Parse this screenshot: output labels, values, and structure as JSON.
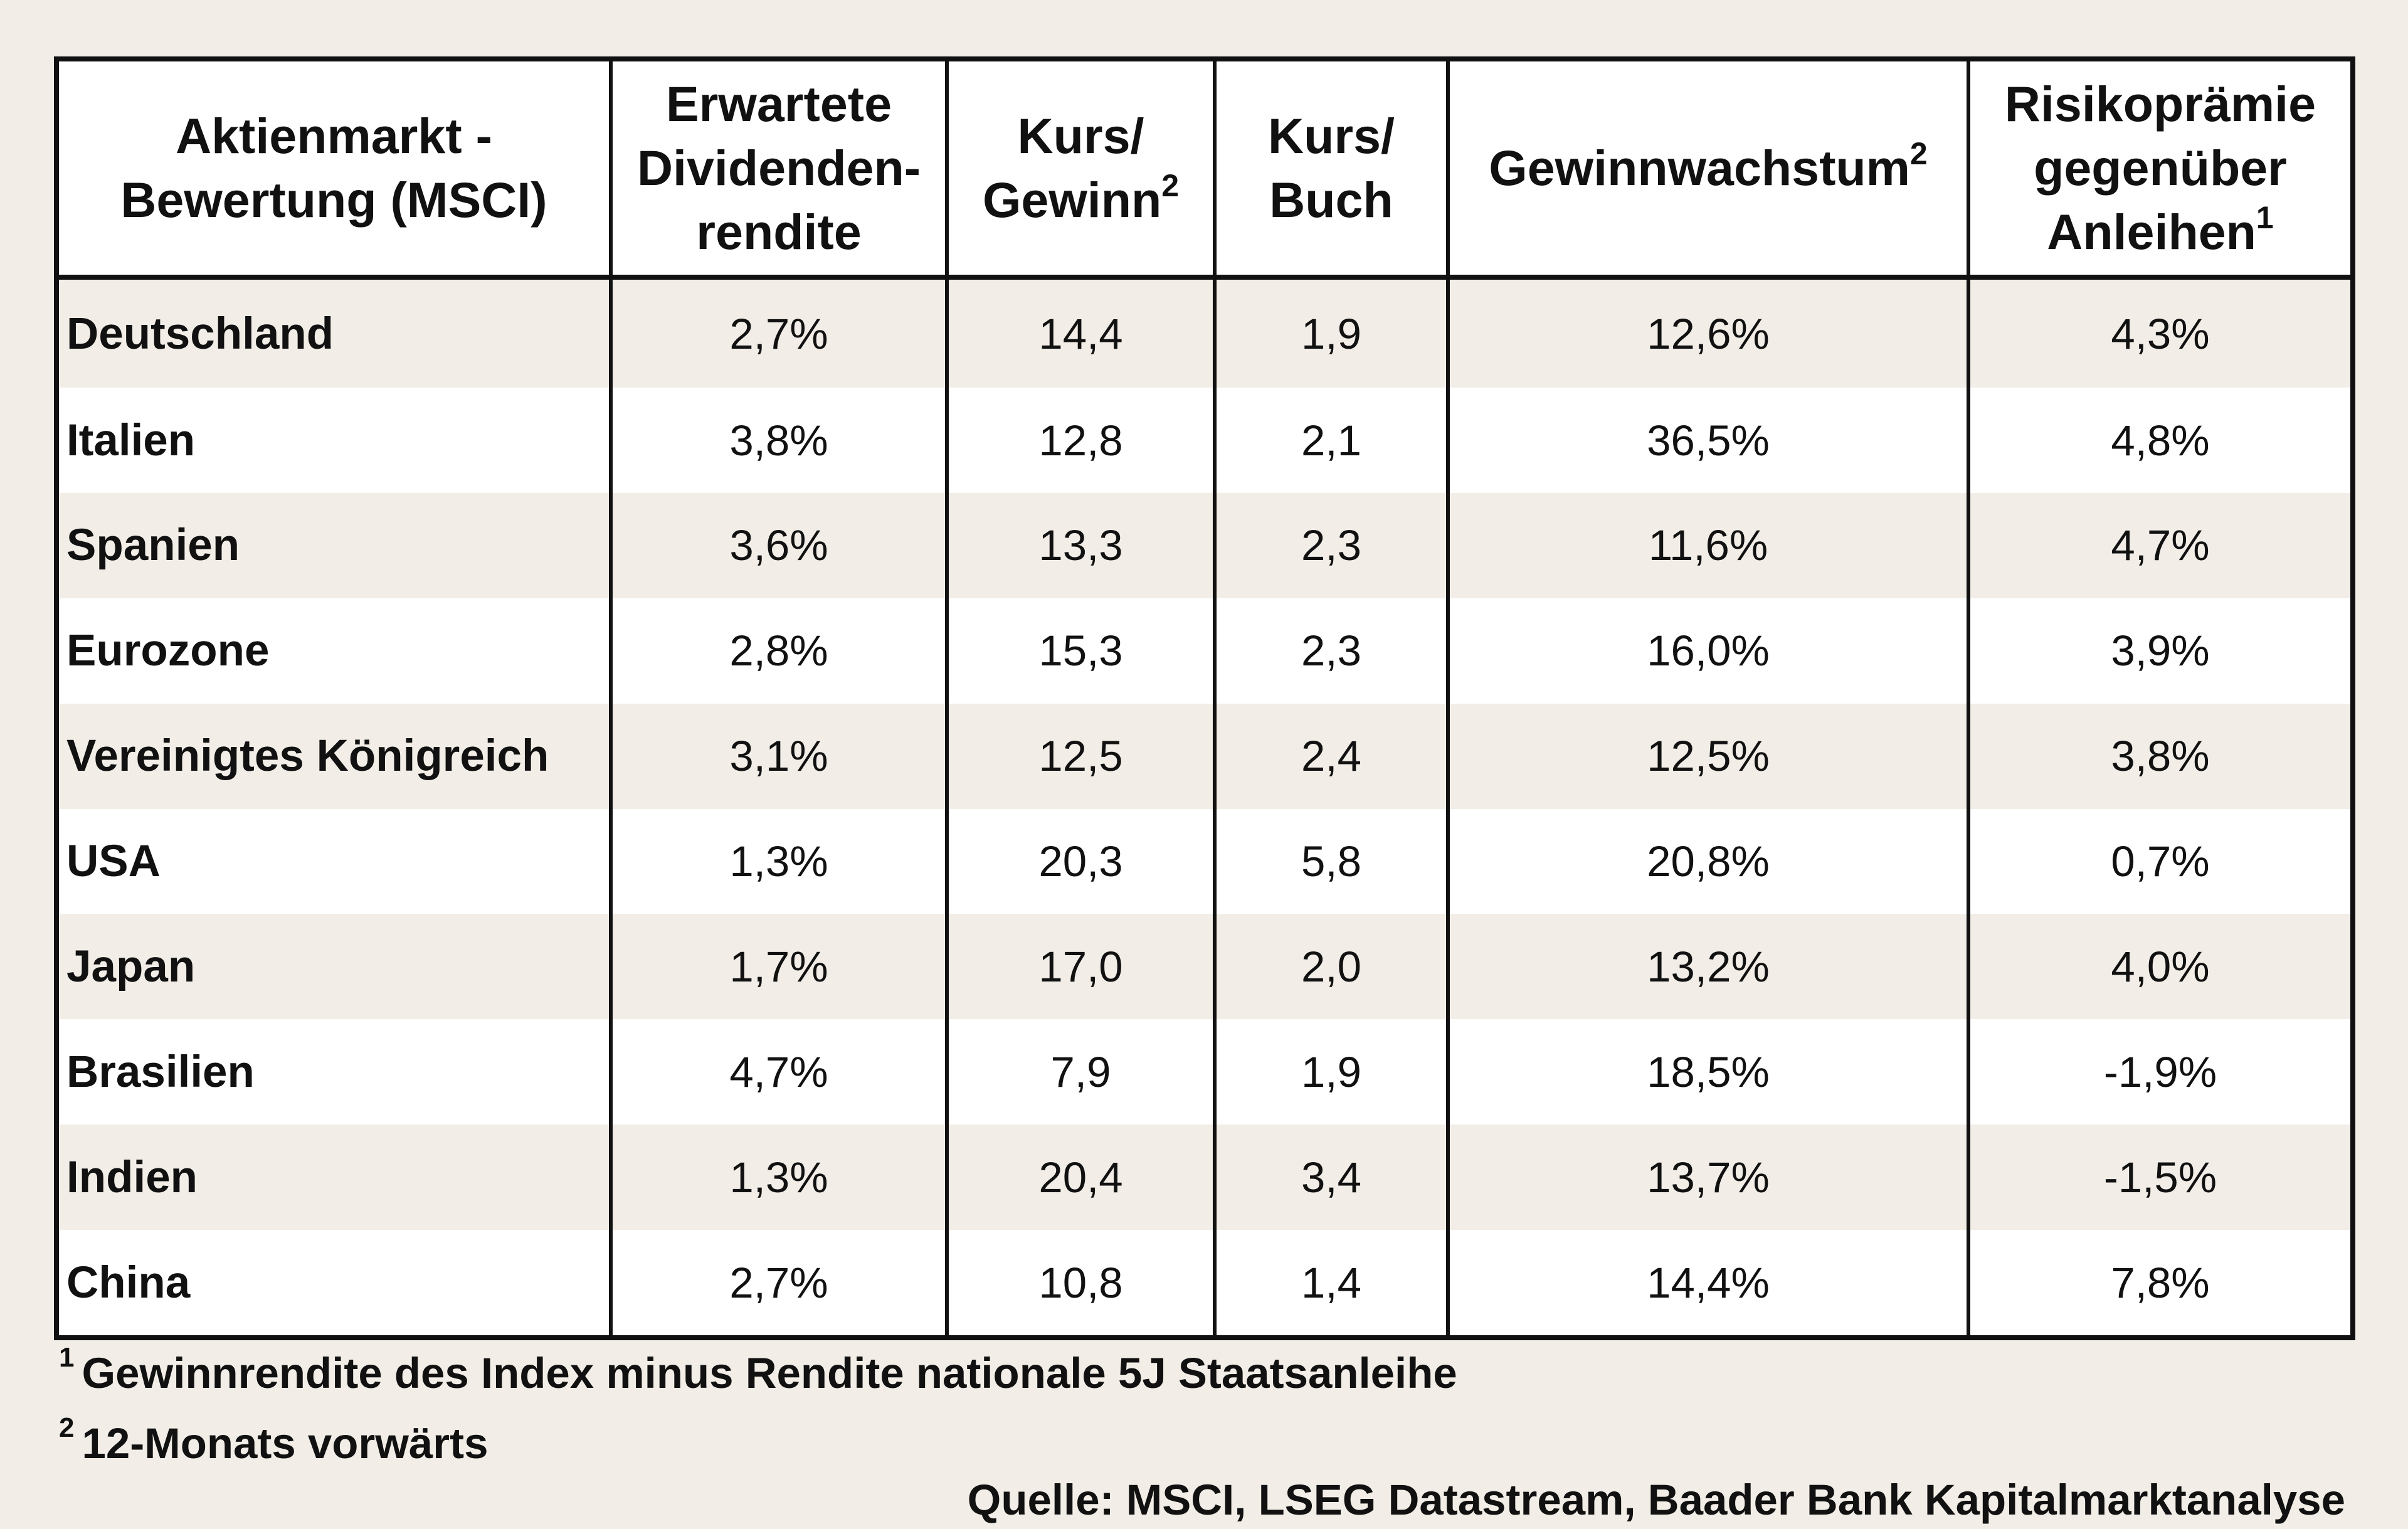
{
  "table": {
    "headers": [
      {
        "line1": "Aktienmarkt -",
        "line2": "Bewertung (MSCI)",
        "line3": "",
        "sup": ""
      },
      {
        "line1": "Erwartete",
        "line2": "Dividenden-",
        "line3": "rendite",
        "sup": ""
      },
      {
        "line1": "Kurs/",
        "line2": "Gewinn",
        "line3": "",
        "sup": "2"
      },
      {
        "line1": "Kurs/",
        "line2": "Buch",
        "line3": "",
        "sup": ""
      },
      {
        "line1": "Gewinnwachstum",
        "line2": "",
        "line3": "",
        "sup": "2"
      },
      {
        "line1": "Risikoprämie",
        "line2": "gegenüber",
        "line3": "Anleihen",
        "sup": "1"
      }
    ],
    "rows": [
      [
        "Deutschland",
        "2,7%",
        "14,4",
        "1,9",
        "12,6%",
        "4,3%"
      ],
      [
        "Italien",
        "3,8%",
        "12,8",
        "2,1",
        "36,5%",
        "4,8%"
      ],
      [
        "Spanien",
        "3,6%",
        "13,3",
        "2,3",
        "11,6%",
        "4,7%"
      ],
      [
        "Eurozone",
        "2,8%",
        "15,3",
        "2,3",
        "16,0%",
        "3,9%"
      ],
      [
        "Vereinigtes Königreich",
        "3,1%",
        "12,5",
        "2,4",
        "12,5%",
        "3,8%"
      ],
      [
        "USA",
        "1,3%",
        "20,3",
        "5,8",
        "20,8%",
        "0,7%"
      ],
      [
        "Japan",
        "1,7%",
        "17,0",
        "2,0",
        "13,2%",
        "4,0%"
      ],
      [
        "Brasilien",
        "4,7%",
        "7,9",
        "1,9",
        "18,5%",
        "-1,9%"
      ],
      [
        "Indien",
        "1,3%",
        "20,4",
        "3,4",
        "13,7%",
        "-1,5%"
      ],
      [
        "China",
        "2,7%",
        "10,8",
        "1,4",
        "14,4%",
        "7,8%"
      ]
    ]
  },
  "footnotes": [
    {
      "marker": "1",
      "text": "Gewinnrendite des Index minus Rendite nationale 5J Staatsanleihe"
    },
    {
      "marker": "2",
      "text": "12-Monats vorwärts"
    }
  ],
  "source": "Quelle: MSCI, LSEG Datastream, Baader Bank Kapitalmarktanalyse",
  "colors": {
    "stripe": "#f2eee7",
    "white": "#ffffff",
    "border": "#111111"
  }
}
